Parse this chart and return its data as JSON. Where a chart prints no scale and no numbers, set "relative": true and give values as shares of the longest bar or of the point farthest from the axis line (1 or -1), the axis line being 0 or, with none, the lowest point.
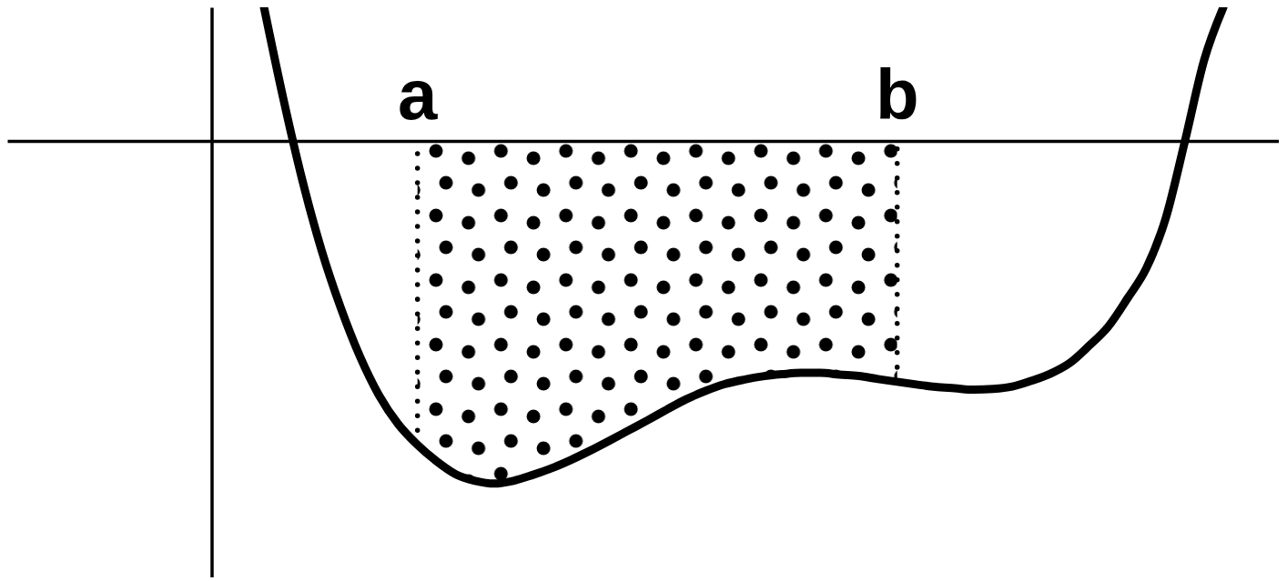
{
  "chart_data": {
    "type": "line",
    "relative": true,
    "categories": [
      null,
      null,
      null,
      null,
      null,
      null,
      null,
      null,
      null,
      null,
      null,
      null,
      null,
      null,
      null,
      null,
      null,
      null,
      null,
      null,
      null,
      null,
      null,
      null,
      null,
      null,
      null,
      null,
      null,
      null,
      null,
      null,
      null,
      null,
      null,
      null,
      null,
      null,
      null,
      null,
      null,
      null,
      null,
      null,
      null,
      null,
      null,
      null,
      null,
      null,
      null
    ],
    "annotations": [
      "a",
      "b"
    ],
    "series": [
      {
        "type": "area",
        "color": "#000000",
        "line_style": "dotted",
        "values": [
          null,
          null,
          null,
          null,
          null,
          null,
          null,
          null,
          -0.887,
          -0.935,
          -0.973,
          -0.992,
          -1,
          -0.992,
          -0.975,
          -0.955,
          -0.931,
          -0.904,
          -0.875,
          -0.845,
          -0.815,
          -0.784,
          -0.754,
          -0.73,
          -0.71,
          -0.697,
          -0.687,
          -0.681,
          -0.677,
          -0.677,
          -0.682,
          -0.686,
          -0.695,
          -0.703,
          null,
          null,
          null,
          null,
          null,
          null,
          null,
          null,
          null,
          null,
          null,
          null,
          null,
          null,
          null,
          null,
          null
        ]
      },
      {
        "color": "#000000",
        "values": [
          0.39,
          0.125,
          -0.115,
          -0.319,
          -0.487,
          -0.629,
          -0.743,
          -0.827,
          -0.887,
          -0.935,
          -0.973,
          -0.992,
          -1,
          -0.992,
          -0.975,
          -0.955,
          -0.931,
          -0.904,
          -0.875,
          -0.845,
          -0.815,
          -0.784,
          -0.754,
          -0.73,
          -0.71,
          -0.697,
          -0.687,
          -0.681,
          -0.677,
          -0.677,
          -0.682,
          -0.686,
          -0.695,
          -0.703,
          -0.711,
          -0.718,
          -0.722,
          -0.726,
          -0.724,
          -0.717,
          -0.7,
          -0.679,
          -0.648,
          -0.598,
          -0.542,
          -0.46,
          -0.37,
          -0.225,
          0,
          0.236,
          0.39
        ]
      }
    ]
  }
}
